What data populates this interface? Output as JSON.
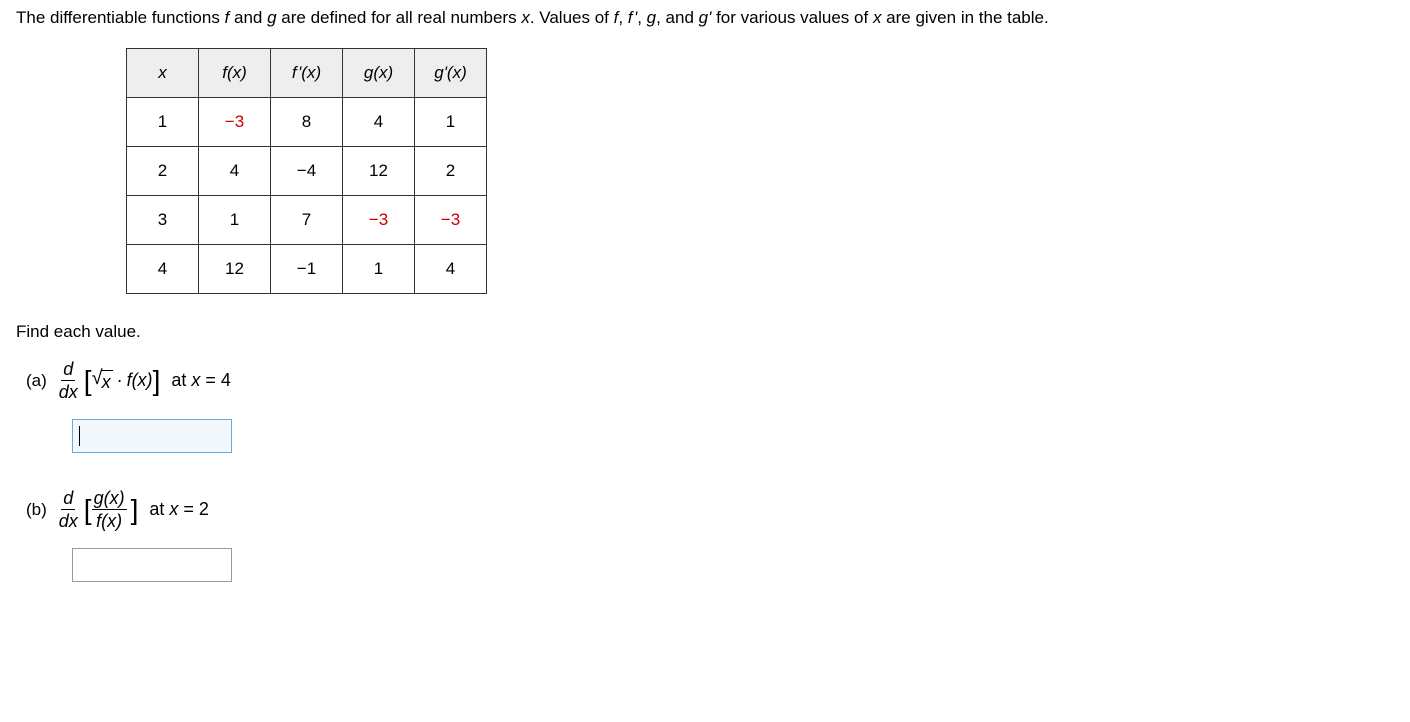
{
  "intro": {
    "pre1": "The differentiable functions ",
    "f": "f",
    "mid1": " and ",
    "g": "g",
    "mid2": " are defined for all real numbers ",
    "x": "x",
    "mid3": ". Values of ",
    "ff": "f",
    "c1": ", ",
    "fp": "f '",
    "c2": ", ",
    "gg": "g",
    "c3": ", and ",
    "gp": "g'",
    "mid4": " for various values of ",
    "x2": "x",
    "post": " are given in the table."
  },
  "table": {
    "headers": [
      "x",
      "f(x)",
      "f '(x)",
      "g(x)",
      "g'(x)"
    ],
    "rows": [
      {
        "x": "1",
        "fx": "−3",
        "fpx": "8",
        "gx": "4",
        "gpx": "1",
        "red": [
          "fx"
        ]
      },
      {
        "x": "2",
        "fx": "4",
        "fpx": "−4",
        "gx": "12",
        "gpx": "2",
        "red": []
      },
      {
        "x": "3",
        "fx": "1",
        "fpx": "7",
        "gx": "−3",
        "gpx": "−3",
        "red": [
          "gx",
          "gpx"
        ]
      },
      {
        "x": "4",
        "fx": "12",
        "fpx": "−1",
        "gx": "1",
        "gpx": "4",
        "red": []
      }
    ]
  },
  "find_text": "Find each value.",
  "parts": {
    "a": {
      "label": "(a)",
      "d": "d",
      "dx": "dx",
      "sqrt_body": "x",
      "dot": "·",
      "fx": "f(x)",
      "at": "at ",
      "xeq": "x",
      "eq": " = ",
      "val": "4"
    },
    "b": {
      "label": "(b)",
      "d": "d",
      "dx": "dx",
      "gx": "g(x)",
      "fx": "f(x)",
      "at": "at ",
      "xeq": "x",
      "eq": " = ",
      "val": "2"
    }
  }
}
